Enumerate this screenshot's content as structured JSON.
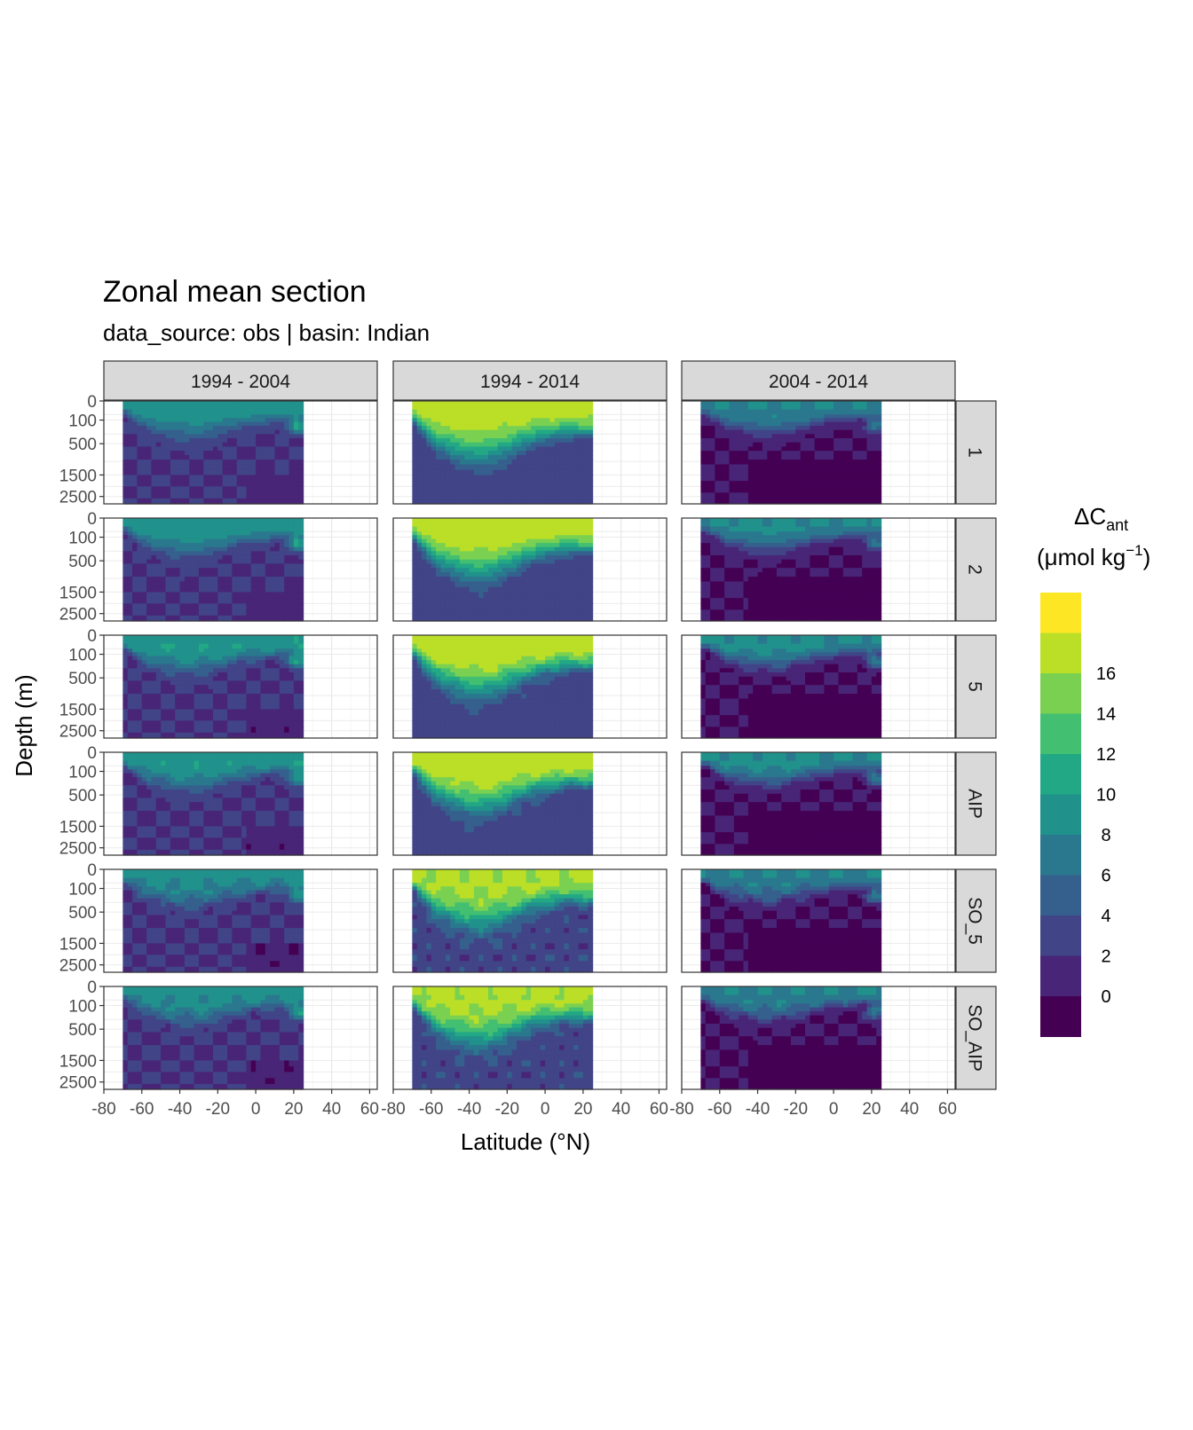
{
  "chart_data": {
    "type": "heatmap",
    "title": "Zonal mean section",
    "subtitle": "data_source:  obs | basin: Indian",
    "xlabel": "Latitude (°N)",
    "ylabel": "Depth (m)",
    "xlim": [
      -80,
      64
    ],
    "x_ticks": [
      -80,
      -60,
      -40,
      -20,
      0,
      20,
      40,
      60
    ],
    "y_ticks": [
      0,
      100,
      500,
      1500,
      2500
    ],
    "y_scale": "sqrt (reversed)",
    "grid": true,
    "facet_columns": [
      "1994 - 2004",
      "1994 - 2014",
      "2004 - 2014"
    ],
    "facet_rows": [
      "1",
      "2",
      "5",
      "AIP",
      "SO_5",
      "SO_AIP"
    ],
    "data_lat_range": [
      -70,
      25
    ],
    "legend": {
      "title_main": "ΔC",
      "title_sub": "ant",
      "units_open": "(μmol kg",
      "units_sup": "−1",
      "units_close": ")",
      "placement": "right",
      "breaks": [
        0,
        2,
        4,
        6,
        8,
        10,
        12,
        14,
        16
      ],
      "bins": [
        "#440154",
        "#482576",
        "#414487",
        "#35608D",
        "#2A788E",
        "#21918C",
        "#22A884",
        "#43BF71",
        "#7AD151",
        "#BBDF27",
        "#FDE725"
      ]
    },
    "profiles": {
      "period_1994_2004": {
        "surface": 9,
        "thermocline_depth_m": 250,
        "deep": 2,
        "north_surface_max": 16
      },
      "period_1994_2014": {
        "surface": 17,
        "thermocline_depth_m": 600,
        "deep": 3,
        "north_surface_max": 17
      },
      "period_2004_2014": {
        "surface": 8,
        "thermocline_depth_m": 200,
        "deep": 0,
        "north_surface_max": 12
      }
    }
  }
}
